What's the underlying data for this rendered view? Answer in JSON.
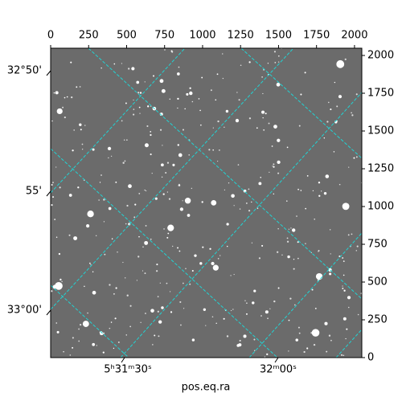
{
  "chart_data": {
    "type": "image",
    "xlim": [
      0,
      2048
    ],
    "ylim": [
      0,
      2048
    ],
    "xticks": [
      0,
      250,
      500,
      750,
      1000,
      1250,
      1500,
      1750,
      2000
    ],
    "yticks": [
      0,
      250,
      500,
      750,
      1000,
      1250,
      1500,
      1750,
      2000
    ],
    "ra_labels": [
      "5ʰ31ᵐ30ˢ",
      "32ᵐ00ˢ"
    ],
    "dec_labels": [
      "32°50'",
      "55'",
      "33°00'"
    ],
    "xlabel": "pos.eq.ra"
  }
}
